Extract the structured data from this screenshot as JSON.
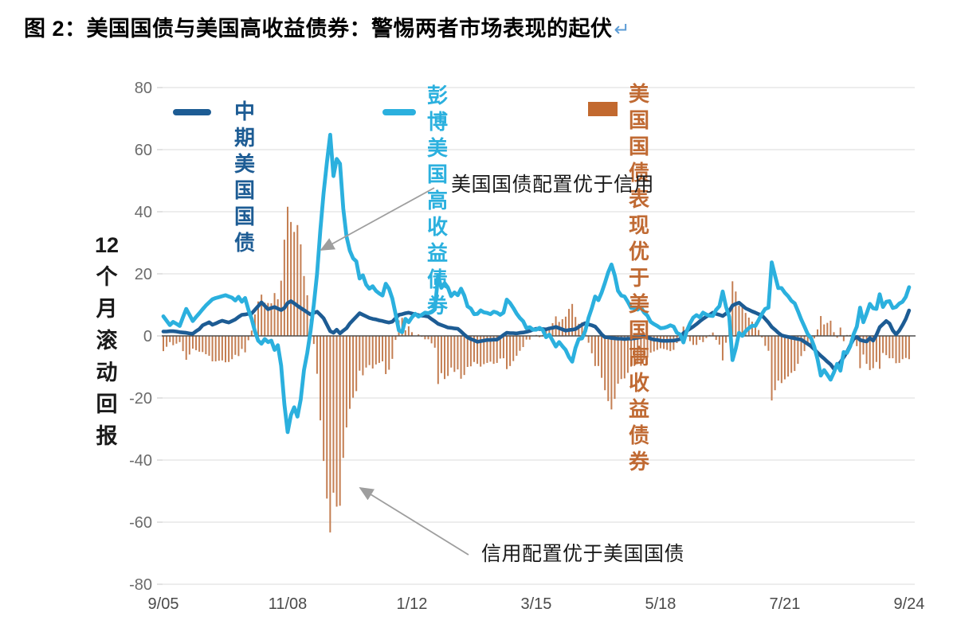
{
  "title": {
    "text": "图 2：美国国债与美国高收益债券：警惕两者市场表现的起伏",
    "return_mark": "↵"
  },
  "axis": {
    "y_label": "12个月滚动回报",
    "y_label_lines": [
      "12",
      "个",
      "月",
      "滚",
      "动",
      "回",
      "报"
    ],
    "y_ticks": [
      80,
      60,
      40,
      20,
      0,
      -20,
      -40,
      -60,
      -80
    ],
    "x_ticks": [
      {
        "label": "9/05",
        "month": 0
      },
      {
        "label": "11/08",
        "month": 38
      },
      {
        "label": "1/12",
        "month": 76
      },
      {
        "label": "3/15",
        "month": 114
      },
      {
        "label": "5/18",
        "month": 152
      },
      {
        "label": "7/21",
        "month": 190
      },
      {
        "label": "9/24",
        "month": 228
      }
    ]
  },
  "legend": [
    {
      "label": "中期美国国债",
      "color": "#1d5c94",
      "swatch": "line"
    },
    {
      "label": "彭博美国\n高收益债券",
      "color": "#2bb0de",
      "swatch": "line"
    },
    {
      "label": "美国国债表现优于\n美国高收益债券",
      "color": "#c2692f",
      "swatch": "bar"
    }
  ],
  "annotations": [
    {
      "text": "美国国债配置优于信用"
    },
    {
      "text": "信用配置优于美国国债"
    }
  ],
  "chart_data": {
    "type": "line+bar",
    "title": "美国国债与美国高收益债券 12个月滚动回报",
    "ylabel": "12个月滚动回报",
    "ylim": [
      -80,
      80
    ],
    "grid": true,
    "legend_position": "top",
    "x_start": "2005-09",
    "x_end": "2024-09",
    "frequency": "monthly",
    "series": [
      {
        "name": "中期美国国债",
        "type": "line",
        "color": "#1d5c94",
        "values": [
          1.4,
          1.4,
          1.5,
          1.5,
          1.4,
          1.2,
          1.1,
          1.0,
          0.8,
          0.7,
          1.5,
          2.2,
          3.4,
          3.9,
          4.4,
          3.6,
          4.0,
          4.5,
          4.9,
          4.6,
          4.3,
          4.8,
          5.3,
          6.1,
          6.8,
          6.9,
          7.1,
          7.2,
          8.4,
          9.6,
          10.8,
          9.7,
          8.6,
          9.0,
          9.3,
          8.8,
          8.3,
          9.0,
          10.6,
          11.2,
          10.5,
          9.7,
          9.0,
          8.3,
          7.6,
          6.9,
          7.4,
          7.8,
          6.8,
          5.7,
          3.6,
          1.5,
          1.0,
          2.0,
          0.8,
          1.7,
          2.5,
          4.0,
          5.1,
          6.2,
          7.3,
          6.8,
          6.3,
          5.8,
          5.5,
          5.3,
          5.0,
          4.8,
          4.5,
          4.3,
          4.6,
          5.7,
          6.8,
          7.0,
          7.3,
          7.5,
          7.2,
          7.0,
          6.7,
          6.5,
          6.4,
          6.2,
          5.4,
          4.7,
          3.9,
          3.5,
          3.1,
          2.7,
          2.6,
          2.4,
          2.3,
          1.4,
          0.4,
          -0.5,
          -1.0,
          -1.4,
          -1.9,
          -1.7,
          -1.5,
          -1.3,
          -1.3,
          -1.2,
          -1.2,
          -0.5,
          0.3,
          1.0,
          0.9,
          0.9,
          0.8,
          1.0,
          1.1,
          1.3,
          1.6,
          2.0,
          2.3,
          2.2,
          2.2,
          2.1,
          2.4,
          2.6,
          2.9,
          2.5,
          2.1,
          1.7,
          1.9,
          2.0,
          2.2,
          2.9,
          3.6,
          4.1,
          3.7,
          3.4,
          3.0,
          1.8,
          0.5,
          -0.4,
          -0.5,
          -0.7,
          -0.8,
          -0.9,
          -0.9,
          -1.0,
          -0.9,
          -0.9,
          -0.8,
          -0.6,
          -0.4,
          -0.2,
          -0.5,
          -0.9,
          -1.2,
          -1.3,
          -1.5,
          -1.6,
          -1.6,
          -1.5,
          -1.5,
          -1.3,
          -1.0,
          0.9,
          1.6,
          2.3,
          3.0,
          3.8,
          4.7,
          5.5,
          6.2,
          6.8,
          7.5,
          7.1,
          6.8,
          6.4,
          7.2,
          8.0,
          9.8,
          10.3,
          10.7,
          9.8,
          8.9,
          8.4,
          7.9,
          7.5,
          7.0,
          6.6,
          5.5,
          4.3,
          2.9,
          2.0,
          1.0,
          0.2,
          -0.1,
          -0.3,
          -0.6,
          -0.8,
          -1.0,
          -1.2,
          -1.9,
          -2.6,
          -3.3,
          -4.3,
          -5.4,
          -6.4,
          -7.3,
          -8.3,
          -9.2,
          -10.6,
          -9.6,
          -8.5,
          -6.9,
          -5.2,
          -3.0,
          -1.0,
          -0.3,
          -1.3,
          -1.6,
          -1.8,
          -0.7,
          -1.5,
          0.3,
          2.8,
          3.8,
          4.8,
          4.0,
          1.8,
          0.5,
          1.7,
          3.5,
          5.5,
          8.2
        ]
      },
      {
        "name": "彭博美国高收益债券",
        "type": "line",
        "color": "#2bb0de",
        "values": [
          6.3,
          4.9,
          3.5,
          4.5,
          3.9,
          3.2,
          6.0,
          8.7,
          6.8,
          4.8,
          6.1,
          7.3,
          8.6,
          9.8,
          10.8,
          11.8,
          12.2,
          12.5,
          12.8,
          13.1,
          12.7,
          12.3,
          11.4,
          12.6,
          11.0,
          12.2,
          8.5,
          5.5,
          1.5,
          -1.5,
          -2.5,
          -1.0,
          -2.0,
          -1.5,
          -4.5,
          -3.0,
          -9.5,
          -22.0,
          -31.0,
          -25.5,
          -23.0,
          -26.0,
          -20.5,
          -11.0,
          -5.5,
          1.5,
          10.0,
          20.0,
          34.0,
          46.0,
          56.0,
          64.8,
          51.5,
          57.0,
          55.5,
          41.0,
          32.0,
          27.5,
          25.0,
          24.0,
          18.5,
          19.5,
          16.5,
          15.2,
          16.0,
          14.5,
          13.7,
          13.0,
          16.8,
          15.2,
          12.0,
          7.0,
          1.8,
          1.2,
          5.5,
          4.4,
          6.0,
          7.1,
          6.2,
          6.8,
          7.5,
          7.3,
          7.8,
          8.5,
          19.4,
          15.5,
          17.0,
          15.6,
          12.8,
          14.0,
          13.1,
          15.2,
          13.0,
          9.5,
          8.8,
          7.0,
          7.1,
          8.2,
          7.6,
          7.4,
          7.0,
          7.8,
          7.5,
          6.8,
          7.5,
          11.7,
          10.6,
          9.0,
          7.2,
          5.8,
          4.7,
          2.5,
          2.8,
          2.0,
          2.0,
          2.6,
          1.9,
          -0.4,
          0.4,
          -1.5,
          -3.4,
          -2.0,
          -3.3,
          -4.5,
          -6.8,
          -8.3,
          -3.9,
          -1.0,
          -0.8,
          1.6,
          5.9,
          9.0,
          12.7,
          11.5,
          14.0,
          17.1,
          20.5,
          23.0,
          19.5,
          14.5,
          13.0,
          12.7,
          11.0,
          9.0,
          8.9,
          8.5,
          9.2,
          7.5,
          6.5,
          4.5,
          3.8,
          3.2,
          2.5,
          2.6,
          2.9,
          3.4,
          3.0,
          1.0,
          0.5,
          -2.1,
          1.5,
          4.0,
          5.9,
          6.7,
          6.0,
          7.5,
          6.9,
          6.5,
          6.4,
          8.4,
          9.6,
          14.3,
          9.4,
          6.1,
          -7.8,
          -4.0,
          1.0,
          0.0,
          1.5,
          2.5,
          3.3,
          3.2,
          5.1,
          7.1,
          8.7,
          9.1,
          23.7,
          19.5,
          15.4,
          15.4,
          13.9,
          12.8,
          11.3,
          10.5,
          8.0,
          5.3,
          3.0,
          0.6,
          -0.7,
          -3.5,
          -7.5,
          -12.8,
          -11.0,
          -12.5,
          -14.1,
          -11.8,
          -9.0,
          -11.2,
          -5.2,
          -5.5,
          -3.3,
          0.5,
          3.0,
          9.1,
          4.4,
          7.2,
          10.3,
          8.9,
          8.7,
          13.4,
          9.3,
          11.0,
          11.2,
          9.0,
          9.3,
          10.4,
          11.0,
          12.6,
          15.7
        ]
      },
      {
        "name": "美国国债表现优于美国高收益债券",
        "type": "bar",
        "color": "#c47e52",
        "values_rule": "treasury_minus_high_yield (series[0] - series[1])"
      }
    ]
  }
}
